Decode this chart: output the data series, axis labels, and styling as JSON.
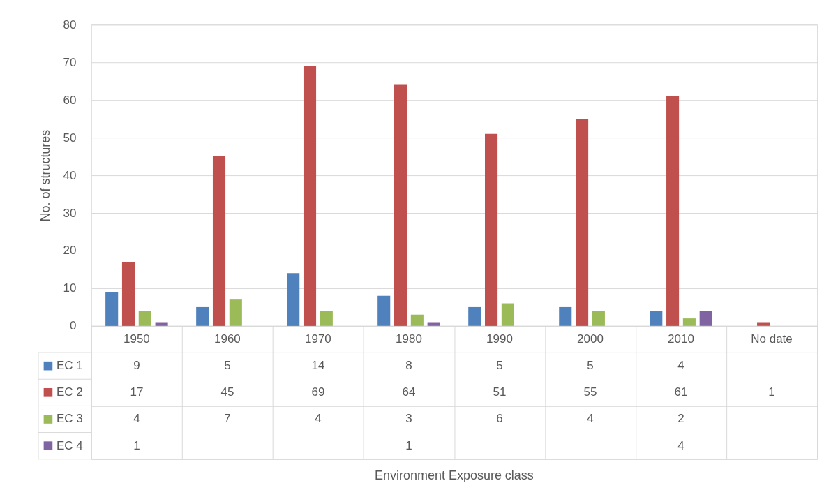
{
  "chart_data": {
    "type": "bar",
    "ylabel": "No. of structures",
    "categories": [
      "1950",
      "1960",
      "1970",
      "1980",
      "1990",
      "2000",
      "2010",
      "No date"
    ],
    "series": [
      {
        "name": "EC 1",
        "color": "#4f81bd",
        "values": [
          9,
          5,
          14,
          8,
          5,
          5,
          4,
          null
        ]
      },
      {
        "name": "EC 2",
        "color": "#c0504d",
        "values": [
          17,
          45,
          69,
          64,
          51,
          55,
          61,
          1
        ]
      },
      {
        "name": "EC 3",
        "color": "#9bbb59",
        "values": [
          4,
          7,
          4,
          3,
          6,
          4,
          2,
          null
        ]
      },
      {
        "name": "EC 4",
        "color": "#8064a2",
        "values": [
          1,
          null,
          null,
          1,
          null,
          null,
          4,
          null
        ]
      }
    ],
    "ylim": [
      0,
      80
    ],
    "yticks": [
      0,
      10,
      20,
      30,
      40,
      50,
      60,
      70,
      80
    ],
    "grid": "y",
    "legend": "bottom left",
    "data_labels": true,
    "annotations": [
      "Environment Exposure class"
    ]
  }
}
